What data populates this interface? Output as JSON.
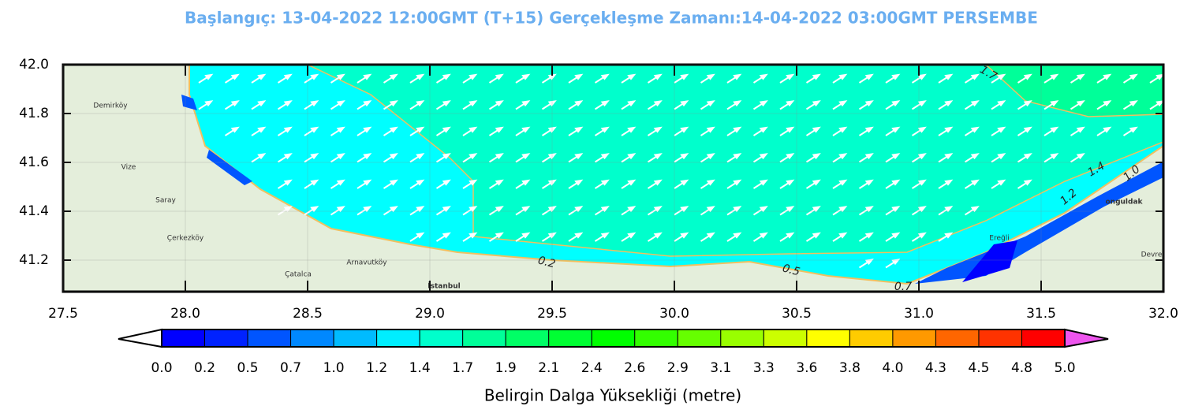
{
  "title": "Başlangıç: 13-04-2022 12:00GMT (T+15)  Gerçekleşme Zamanı:14-04-2022 03:00GMT PERSEMBE",
  "map": {
    "yticks": [
      "42.0",
      "41.8",
      "41.6",
      "41.4",
      "41.2"
    ],
    "xticks": [
      "27.5",
      "28.0",
      "28.5",
      "29.0",
      "29.5",
      "30.0",
      "30.5",
      "31.0",
      "31.5",
      "32.0"
    ],
    "contour_labels": [
      "1.7",
      "1.4",
      "1.2",
      "1.0",
      "0.2",
      "0.5",
      "0.7"
    ],
    "places": [
      "Demirköy",
      "Vize",
      "Saray",
      "Çerkezköy",
      "Çatalca",
      "Arnavutköy",
      "İstanbul",
      "Ereğli",
      "onguldak",
      "Devre"
    ]
  },
  "colorbar": {
    "labels": [
      "0.0",
      "0.2",
      "0.5",
      "0.7",
      "1.0",
      "1.2",
      "1.4",
      "1.7",
      "1.9",
      "2.1",
      "2.4",
      "2.6",
      "2.9",
      "3.1",
      "3.3",
      "3.6",
      "3.8",
      "4.0",
      "4.3",
      "4.5",
      "4.8",
      "5.0"
    ],
    "colors": [
      "#0000ff",
      "#0022ff",
      "#0055ff",
      "#0088ff",
      "#00bbff",
      "#00eeff",
      "#00ffcc",
      "#00ff99",
      "#00ff66",
      "#00ff33",
      "#00ff00",
      "#33ff00",
      "#66ff00",
      "#99ff00",
      "#ccff00",
      "#ffff00",
      "#ffcc00",
      "#ff9900",
      "#ff6600",
      "#ff3300",
      "#ff0000"
    ],
    "title": "Belirgin Dalga Yüksekliği (metre)"
  }
}
